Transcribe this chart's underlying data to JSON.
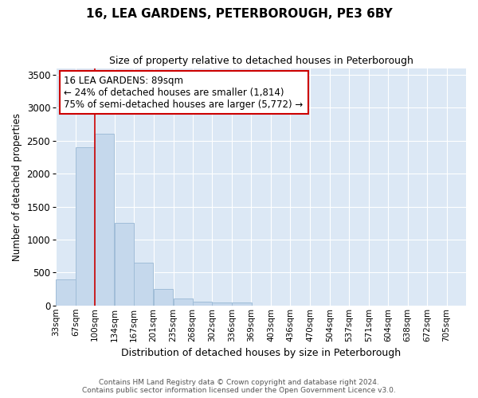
{
  "title": "16, LEA GARDENS, PETERBOROUGH, PE3 6BY",
  "subtitle": "Size of property relative to detached houses in Peterborough",
  "xlabel": "Distribution of detached houses by size in Peterborough",
  "ylabel": "Number of detached properties",
  "bin_labels": [
    "33sqm",
    "67sqm",
    "100sqm",
    "134sqm",
    "167sqm",
    "201sqm",
    "235sqm",
    "268sqm",
    "302sqm",
    "336sqm",
    "369sqm",
    "403sqm",
    "436sqm",
    "470sqm",
    "504sqm",
    "537sqm",
    "571sqm",
    "604sqm",
    "638sqm",
    "672sqm",
    "705sqm"
  ],
  "bar_values": [
    400,
    2400,
    2600,
    1250,
    650,
    250,
    100,
    60,
    50,
    50,
    0,
    0,
    0,
    0,
    0,
    0,
    0,
    0,
    0,
    0,
    0
  ],
  "bar_color": "#c5d8ec",
  "bar_edge_color": "#a0bdd8",
  "ylim": [
    0,
    3600
  ],
  "yticks": [
    0,
    500,
    1000,
    1500,
    2000,
    2500,
    3000,
    3500
  ],
  "property_line_color": "#cc0000",
  "annotation_text": "16 LEA GARDENS: 89sqm\n← 24% of detached houses are smaller (1,814)\n75% of semi-detached houses are larger (5,772) →",
  "annotation_box_color": "#ffffff",
  "annotation_box_edge": "#cc0000",
  "footer_line1": "Contains HM Land Registry data © Crown copyright and database right 2024.",
  "footer_line2": "Contains public sector information licensed under the Open Government Licence v3.0.",
  "plot_bg_color": "#dce8f5",
  "grid_color": "#ffffff"
}
